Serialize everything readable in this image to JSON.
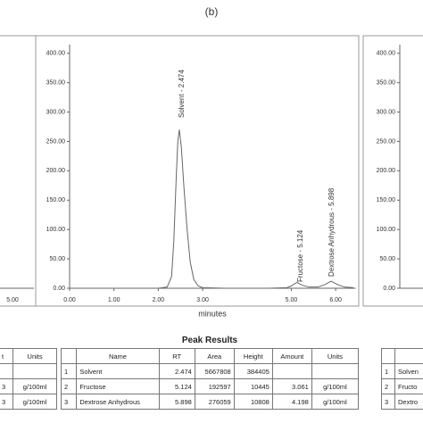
{
  "title": "(b)",
  "chart_data": {
    "type": "line",
    "x_label": "minutes",
    "x": [
      0,
      0.5,
      1.0,
      1.5,
      2.0,
      2.2,
      2.3,
      2.35,
      2.4,
      2.44,
      2.474,
      2.52,
      2.58,
      2.65,
      2.72,
      2.8,
      2.9,
      3.0,
      3.5,
      4.0,
      4.5,
      4.9,
      5.0,
      5.124,
      5.25,
      5.4,
      5.6,
      5.75,
      5.898,
      6.05,
      6.2,
      6.4
    ],
    "values": [
      0,
      0,
      0,
      0,
      0,
      2,
      20,
      80,
      180,
      250,
      270,
      240,
      170,
      100,
      45,
      15,
      4,
      1,
      0,
      0,
      0,
      1,
      4,
      10,
      5,
      2,
      2,
      6,
      12,
      6,
      2,
      1
    ],
    "color": "#666666",
    "xlim": [
      0,
      6.45
    ],
    "ylim": [
      0,
      430
    ],
    "xticks": [
      {
        "value": 0,
        "label": "0.00"
      },
      {
        "value": 1,
        "label": "1.00"
      },
      {
        "value": 2,
        "label": "2.00"
      },
      {
        "value": 3,
        "label": "3.00"
      },
      {
        "value": 5,
        "label": "5.00"
      },
      {
        "value": 6,
        "label": "6.00"
      }
    ],
    "yticks": [
      {
        "value": 0,
        "label": "0.00"
      },
      {
        "value": 50,
        "label": "50.00"
      },
      {
        "value": 100,
        "label": "100.00"
      },
      {
        "value": 150,
        "label": "150.00"
      },
      {
        "value": 200,
        "label": "200.00"
      },
      {
        "value": 250,
        "label": "250.00"
      },
      {
        "value": 300,
        "label": "300.00"
      },
      {
        "value": 350,
        "label": "350.00"
      },
      {
        "value": 400,
        "label": "400.00"
      }
    ],
    "annotations": [
      "Solvent - 2.474",
      "Fructose - 5.124",
      "Dextrose Anhydrous - 5.898"
    ]
  },
  "peak_table": {
    "title": "Peak Results",
    "header": [
      "Name",
      "RT",
      "Area",
      "Height",
      "Amount",
      "Units"
    ],
    "rows": [
      [
        "1",
        "Solvent",
        "2.474",
        "5667808",
        "384405"
      ],
      [
        "2",
        "Fructose",
        "5.124",
        "192597",
        "10445",
        "3.061",
        "g/100ml"
      ],
      [
        "3",
        "Dextrose Anhydrous",
        "5.898",
        "276059",
        "10808",
        "4.198",
        "g/100ml"
      ]
    ]
  },
  "left_panel": {
    "x_tick": "5.00",
    "header": [
      "t",
      "Units"
    ],
    "rows": [
      [
        "3",
        "g/100ml"
      ],
      [
        "3",
        "g/100ml"
      ]
    ]
  },
  "right_panel": {
    "yticks": [
      {
        "value": 0,
        "label": "0.00"
      },
      {
        "value": 50,
        "label": "50.00"
      },
      {
        "value": 100,
        "label": "100.00"
      },
      {
        "value": 150,
        "label": "150.00"
      },
      {
        "value": 200,
        "label": "200.00"
      },
      {
        "value": 250,
        "label": "250.00"
      },
      {
        "value": 300,
        "label": "300.00"
      },
      {
        "value": 350,
        "label": "350.00"
      },
      {
        "value": 400,
        "label": "400.00"
      }
    ],
    "rows": [
      [
        "1",
        "Solven"
      ],
      [
        "2",
        "Fructo"
      ],
      [
        "3",
        "Dextro"
      ]
    ]
  }
}
